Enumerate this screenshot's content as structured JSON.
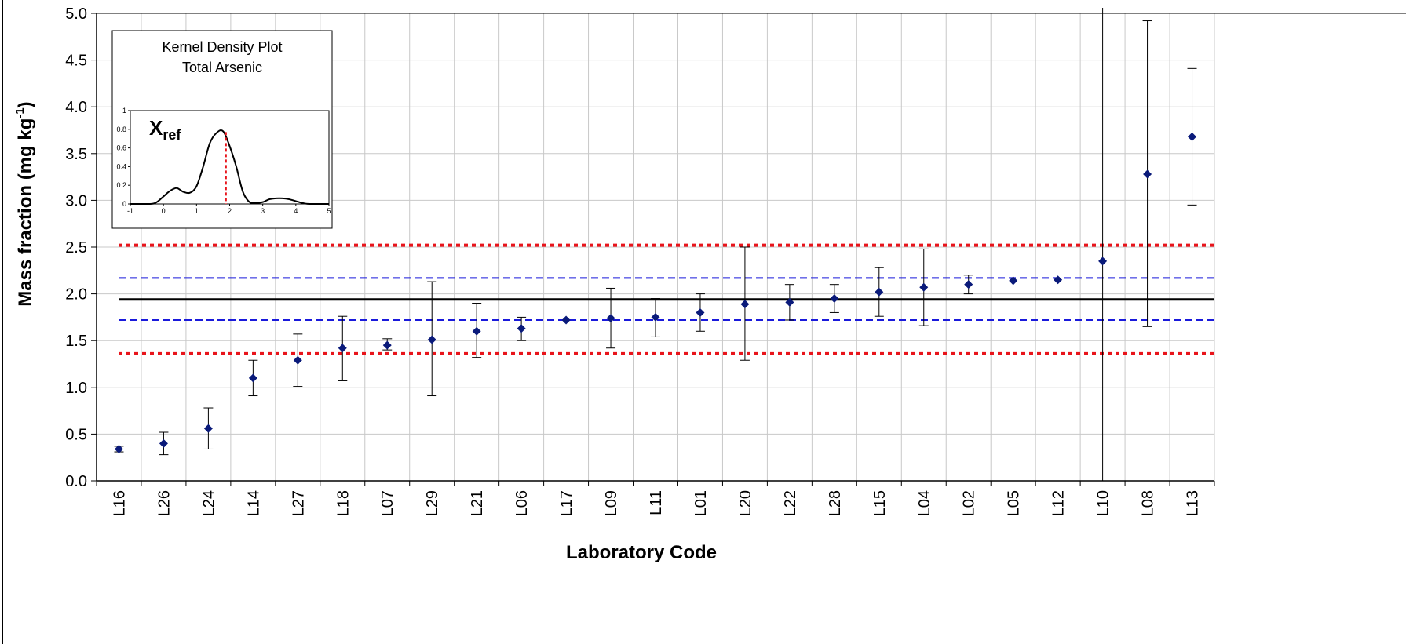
{
  "chart_data": [
    {
      "type": "scatter",
      "xlabel": "Laboratory Code",
      "ylabel_main": "Mass fraction (mg kg",
      "ylabel_sup": "-1",
      "ylabel_end": ")",
      "ylim": [
        0,
        5
      ],
      "yticks": [
        "0.0",
        "0.5",
        "1.0",
        "1.5",
        "2.0",
        "2.5",
        "3.0",
        "3.5",
        "4.0",
        "4.5",
        "5.0"
      ],
      "grid": true,
      "categories": [
        "L16",
        "L26",
        "L24",
        "L14",
        "L27",
        "L18",
        "L07",
        "L29",
        "L21",
        "L06",
        "L17",
        "L09",
        "L11",
        "L01",
        "L20",
        "L22",
        "L28",
        "L15",
        "L04",
        "L02",
        "L05",
        "L12",
        "L10",
        "L08",
        "L13"
      ],
      "values": [
        0.34,
        0.4,
        0.56,
        1.1,
        1.29,
        1.42,
        1.45,
        1.51,
        1.6,
        1.63,
        1.72,
        1.74,
        1.75,
        1.8,
        1.89,
        1.91,
        1.95,
        2.02,
        2.07,
        2.1,
        2.14,
        2.15,
        2.35,
        3.28,
        3.68
      ],
      "error_low": [
        0.31,
        0.28,
        0.34,
        0.91,
        1.01,
        1.07,
        1.4,
        0.91,
        1.32,
        1.5,
        1.72,
        1.42,
        1.54,
        1.6,
        1.29,
        1.72,
        1.8,
        1.76,
        1.66,
        2.0,
        2.14,
        2.15,
        null,
        1.65,
        2.95
      ],
      "error_high": [
        0.37,
        0.52,
        0.78,
        1.29,
        1.57,
        1.76,
        1.52,
        2.13,
        1.9,
        1.75,
        1.72,
        2.06,
        1.95,
        2.0,
        2.5,
        2.1,
        2.1,
        2.28,
        2.48,
        2.2,
        2.14,
        2.15,
        null,
        4.92,
        4.41
      ],
      "extends_full_range": "L10",
      "reference_lines": [
        {
          "name": "",
          "value": 1.94,
          "style": "solid",
          "color": "#000000"
        },
        {
          "name": "",
          "value": 2.17,
          "style": "dashed",
          "color": "#1a1adb"
        },
        {
          "name": "",
          "value": 1.72,
          "style": "dashed",
          "color": "#1a1adb"
        },
        {
          "name": "",
          "value": 2.52,
          "style": "dotted",
          "color": "#e8141b"
        },
        {
          "name": "",
          "value": 1.36,
          "style": "dotted",
          "color": "#e8141b"
        }
      ],
      "marker_color": "#0a1a7a"
    },
    {
      "type": "line",
      "title_line1": "Kernel Density Plot",
      "title_line2": "Total Arsenic",
      "annotation": "X",
      "annotation_sub": "ref",
      "xlim": [
        -1,
        5
      ],
      "ylim": [
        0,
        1
      ],
      "xticks": [
        "-1",
        "0",
        "1",
        "2",
        "3",
        "4",
        "5"
      ],
      "yticks": [
        "0",
        "0.2",
        "0.4",
        "0.6",
        "0.8",
        "1"
      ],
      "ref_x": 1.89,
      "ref_color": "#e8141b",
      "x": [
        -1.0,
        -0.4,
        -0.2,
        0.0,
        0.2,
        0.4,
        0.6,
        0.8,
        1.0,
        1.2,
        1.4,
        1.6,
        1.8,
        2.0,
        2.2,
        2.4,
        2.6,
        2.8,
        3.0,
        3.2,
        3.4,
        3.6,
        3.8,
        4.0,
        4.2,
        4.4,
        5.0
      ],
      "y": [
        0.0,
        0.0,
        0.02,
        0.08,
        0.14,
        0.17,
        0.13,
        0.12,
        0.19,
        0.4,
        0.65,
        0.76,
        0.78,
        0.62,
        0.4,
        0.13,
        0.02,
        0.01,
        0.02,
        0.05,
        0.06,
        0.06,
        0.05,
        0.03,
        0.01,
        0.0,
        0.0
      ]
    }
  ]
}
